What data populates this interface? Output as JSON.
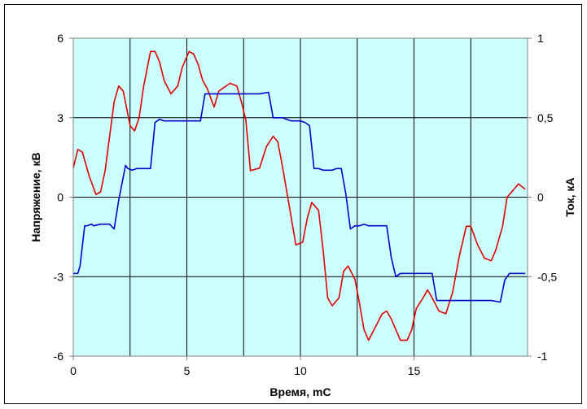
{
  "chart_data": {
    "type": "line",
    "title": "",
    "xlabel": "Время, mC",
    "ylabel": "Напряжение, кВ",
    "y2label": "Ток, кА",
    "xlim": [
      0,
      20
    ],
    "ylim": [
      -6,
      6
    ],
    "y2lim": [
      -1,
      1
    ],
    "x_ticks": [
      "0",
      "5",
      "10",
      "15"
    ],
    "y_ticks": [
      "6",
      "3",
      "0",
      "-3",
      "-6"
    ],
    "y2_ticks": [
      "1",
      "0,5",
      "0",
      "-0,5",
      "-1"
    ],
    "grid": true,
    "plot_background": "#ccffff",
    "series": [
      {
        "axis": "left",
        "color": "#e00000",
        "x": [
          0,
          0.2,
          0.4,
          0.7,
          1.0,
          1.2,
          1.4,
          1.8,
          2.0,
          2.2,
          2.5,
          2.7,
          2.9,
          3.1,
          3.4,
          3.6,
          3.8,
          4.0,
          4.3,
          4.6,
          4.8,
          5.1,
          5.3,
          5.5,
          5.7,
          5.9,
          6.2,
          6.4,
          6.9,
          7.2,
          7.4,
          7.6,
          7.8,
          8.2,
          8.5,
          8.8,
          9.0,
          9.2,
          9.5,
          9.8,
          10.1,
          10.3,
          10.5,
          10.8,
          11.0,
          11.2,
          11.4,
          11.7,
          11.9,
          12.1,
          12.4,
          12.6,
          12.8,
          13.0,
          13.3,
          13.6,
          13.8,
          14.0,
          14.4,
          14.7,
          14.9,
          15.1,
          15.4,
          15.6,
          15.8,
          16.1,
          16.4,
          16.7,
          17.0,
          17.3,
          17.5,
          17.8,
          18.1,
          18.4,
          18.6,
          18.9,
          19.1,
          19.3,
          19.6,
          19.9
        ],
        "y": [
          1.1,
          1.8,
          1.7,
          0.8,
          0.1,
          0.2,
          1.0,
          3.6,
          4.2,
          4.0,
          2.7,
          2.5,
          3.0,
          4.2,
          5.5,
          5.5,
          5.1,
          4.4,
          3.9,
          4.2,
          4.9,
          5.5,
          5.4,
          5.0,
          4.4,
          4.1,
          3.4,
          4.0,
          4.3,
          4.2,
          3.6,
          2.9,
          1.0,
          1.1,
          1.9,
          2.3,
          2.1,
          1.2,
          -0.3,
          -1.8,
          -1.7,
          -0.8,
          -0.2,
          -0.5,
          -2.0,
          -3.8,
          -4.1,
          -3.8,
          -2.8,
          -2.6,
          -3.1,
          -4.0,
          -5.0,
          -5.4,
          -4.9,
          -4.4,
          -4.3,
          -4.6,
          -5.4,
          -5.4,
          -5.0,
          -4.2,
          -3.8,
          -3.5,
          -3.8,
          -4.3,
          -4.4,
          -3.6,
          -2.2,
          -1.1,
          -1.1,
          -1.8,
          -2.3,
          -2.4,
          -2.0,
          -1.1,
          0.0,
          0.2,
          0.5,
          0.3
        ]
      },
      {
        "axis": "right",
        "color": "#0000c8",
        "x": [
          0,
          0.2,
          0.3,
          0.5,
          0.6,
          0.8,
          0.9,
          1.2,
          1.6,
          1.8,
          2.0,
          2.3,
          2.4,
          2.6,
          2.8,
          3.0,
          3.4,
          3.6,
          3.8,
          4.0,
          4.4,
          4.8,
          5.0,
          5.5,
          5.6,
          5.8,
          6.2,
          6.6,
          7.0,
          7.4,
          7.6,
          7.8,
          8.2,
          8.6,
          8.8,
          9.2,
          9.6,
          9.8,
          10.0,
          10.2,
          10.4,
          10.6,
          10.8,
          11.0,
          11.4,
          11.6,
          11.8,
          12.0,
          12.2,
          12.4,
          12.6,
          12.8,
          13.0,
          13.4,
          13.8,
          14.0,
          14.2,
          14.4,
          14.6,
          14.8,
          15.0,
          15.4,
          15.6,
          15.8,
          16.0,
          16.4,
          16.8,
          17.2,
          17.6,
          18.0,
          18.4,
          18.8,
          19.0,
          19.2,
          19.4,
          19.7,
          19.9
        ],
        "y": [
          -0.48,
          -0.48,
          -0.43,
          -0.18,
          -0.18,
          -0.17,
          -0.18,
          -0.17,
          -0.17,
          -0.2,
          -0.02,
          0.2,
          0.18,
          0.17,
          0.18,
          0.18,
          0.18,
          0.47,
          0.49,
          0.48,
          0.48,
          0.48,
          0.48,
          0.48,
          0.48,
          0.65,
          0.65,
          0.65,
          0.65,
          0.65,
          0.65,
          0.65,
          0.65,
          0.66,
          0.5,
          0.5,
          0.48,
          0.48,
          0.48,
          0.47,
          0.45,
          0.18,
          0.18,
          0.17,
          0.17,
          0.18,
          0.18,
          0.02,
          -0.2,
          -0.18,
          -0.18,
          -0.17,
          -0.18,
          -0.18,
          -0.18,
          -0.38,
          -0.5,
          -0.48,
          -0.48,
          -0.48,
          -0.48,
          -0.48,
          -0.48,
          -0.48,
          -0.65,
          -0.65,
          -0.65,
          -0.65,
          -0.65,
          -0.65,
          -0.65,
          -0.66,
          -0.52,
          -0.48,
          -0.48,
          -0.48,
          -0.48
        ]
      }
    ]
  }
}
